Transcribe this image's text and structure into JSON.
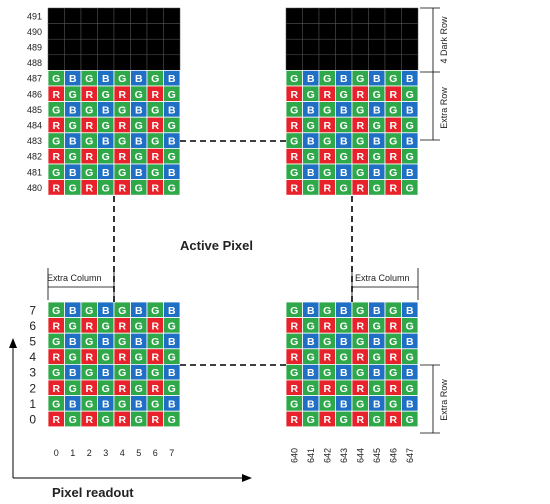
{
  "title": "Active Pixel",
  "readout_label": "Pixel readout",
  "annotations": {
    "dark_row": "4 Dark Row",
    "extra_row": "Extra Row",
    "extra_column": "Extra Column"
  },
  "row_labels_top": [
    "491",
    "490",
    "489",
    "488",
    "487",
    "486",
    "485",
    "484",
    "483",
    "482",
    "481",
    "480"
  ],
  "row_labels_bottom": [
    "7",
    "6",
    "5",
    "4",
    "3",
    "2",
    "1",
    "0"
  ],
  "col_labels_left": [
    "0",
    "1",
    "2",
    "3",
    "4",
    "5",
    "6",
    "7"
  ],
  "col_labels_right": [
    "640",
    "641",
    "642",
    "643",
    "644",
    "645",
    "646",
    "647"
  ],
  "bayer_pattern": {
    "odd_row": [
      "G",
      "B"
    ],
    "even_row": [
      "R",
      "G"
    ]
  },
  "colors": {
    "R": "#e8222a",
    "G": "#2fa84a",
    "B": "#1f6fc4",
    "dark": "#000000",
    "cell_text": "#ffffff"
  }
}
